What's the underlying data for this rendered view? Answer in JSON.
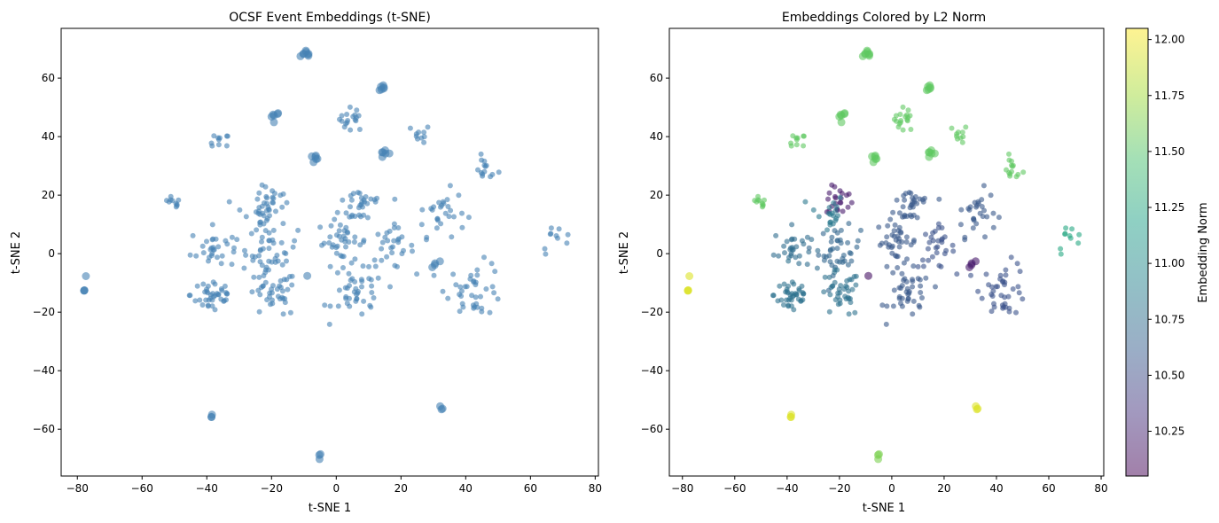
{
  "chart_data": [
    {
      "type": "scatter",
      "title": "OCSF Event Embeddings (t-SNE)",
      "xlabel": "t-SNE 1",
      "ylabel": "t-SNE 2",
      "xlim": [
        -85,
        81
      ],
      "ylim": [
        -76,
        77
      ],
      "xticks": [
        -80,
        -60,
        -40,
        -20,
        0,
        20,
        40,
        60,
        80
      ],
      "yticks": [
        -60,
        -40,
        -20,
        0,
        20,
        40,
        60
      ],
      "point_color": "#4682b4",
      "clusters": [
        {
          "x": -9,
          "y": 68,
          "n": 8,
          "spread": 1.0
        },
        {
          "x": 14,
          "y": 57,
          "n": 6,
          "spread": 0.8
        },
        {
          "x": -19,
          "y": 47,
          "n": 6,
          "spread": 0.8
        },
        {
          "x": 5,
          "y": 46,
          "n": 18,
          "spread": 2.0
        },
        {
          "x": -36,
          "y": 38,
          "n": 10,
          "spread": 1.5
        },
        {
          "x": 26,
          "y": 41,
          "n": 10,
          "spread": 1.5
        },
        {
          "x": -7,
          "y": 32.5,
          "n": 6,
          "spread": 0.8
        },
        {
          "x": 15,
          "y": 34,
          "n": 6,
          "spread": 0.8
        },
        {
          "x": 46,
          "y": 29,
          "n": 14,
          "spread": 2.0
        },
        {
          "x": -51,
          "y": 17,
          "n": 10,
          "spread": 1.5
        },
        {
          "x": -20,
          "y": 18,
          "n": 22,
          "spread": 2.5
        },
        {
          "x": -25,
          "y": 14,
          "n": 20,
          "spread": 3.5
        },
        {
          "x": 8,
          "y": 17,
          "n": 30,
          "spread": 3.5
        },
        {
          "x": 32,
          "y": 14,
          "n": 30,
          "spread": 4.0
        },
        {
          "x": -38,
          "y": 2,
          "n": 30,
          "spread": 3.5
        },
        {
          "x": -20,
          "y": 1,
          "n": 40,
          "spread": 4.0
        },
        {
          "x": 2,
          "y": 4,
          "n": 40,
          "spread": 4.0
        },
        {
          "x": 17,
          "y": 2,
          "n": 30,
          "spread": 3.5
        },
        {
          "x": -38,
          "y": -14,
          "n": 40,
          "spread": 3.5
        },
        {
          "x": -20,
          "y": -14,
          "n": 40,
          "spread": 4.0
        },
        {
          "x": 7,
          "y": -14,
          "n": 40,
          "spread": 4.0
        },
        {
          "x": 43,
          "y": -12,
          "n": 40,
          "spread": 4.5
        },
        {
          "x": 31,
          "y": -3,
          "n": 4,
          "spread": 0.8
        },
        {
          "x": -9,
          "y": -8,
          "n": 1,
          "spread": 0.3
        },
        {
          "x": 68,
          "y": 5,
          "n": 10,
          "spread": 2.5
        },
        {
          "x": -78,
          "y": -12.5,
          "n": 3,
          "spread": 0.3
        },
        {
          "x": -77.5,
          "y": -8,
          "n": 1,
          "spread": 0.3
        },
        {
          "x": -38.5,
          "y": -55.5,
          "n": 3,
          "spread": 0.3
        },
        {
          "x": 32.5,
          "y": -52.5,
          "n": 3,
          "spread": 0.3
        },
        {
          "x": -5,
          "y": -69,
          "n": 3,
          "spread": 0.3
        }
      ]
    },
    {
      "type": "scatter",
      "title": "Embeddings Colored by L2 Norm",
      "xlabel": "t-SNE 1",
      "ylabel": "t-SNE 2",
      "xlim": [
        -85,
        81
      ],
      "ylim": [
        -76,
        77
      ],
      "xticks": [
        -80,
        -60,
        -40,
        -20,
        0,
        20,
        40,
        60,
        80
      ],
      "yticks": [
        -60,
        -40,
        -20,
        0,
        20,
        40,
        60
      ],
      "colorbar": {
        "label": "Embedding Norm",
        "range": [
          10.05,
          12.05
        ],
        "ticks": [
          "10.25",
          "10.50",
          "10.75",
          "11.00",
          "11.25",
          "11.50",
          "11.75",
          "12.00"
        ],
        "tick_values": [
          10.25,
          10.5,
          10.75,
          11.0,
          11.25,
          11.5,
          11.75,
          12.0
        ]
      },
      "cluster_norms": [
        11.55,
        11.55,
        11.55,
        11.55,
        11.55,
        11.55,
        11.55,
        11.55,
        11.55,
        11.55,
        10.2,
        10.85,
        10.6,
        10.6,
        10.75,
        10.7,
        10.6,
        10.55,
        10.8,
        10.8,
        10.6,
        10.55,
        10.2,
        10.15,
        11.25,
        11.95,
        11.95,
        11.95,
        11.95,
        11.65
      ]
    }
  ]
}
